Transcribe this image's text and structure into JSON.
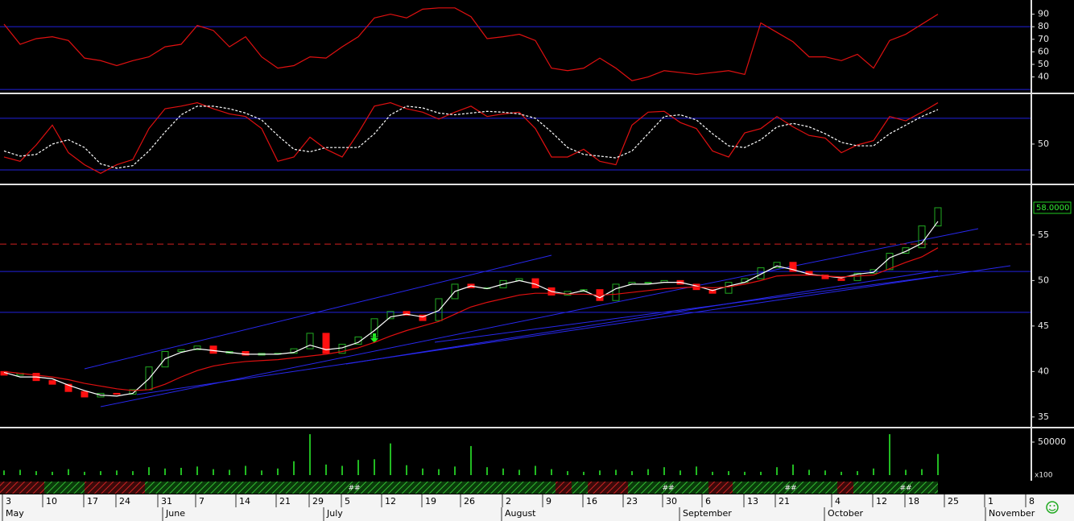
{
  "chart_data": [
    {
      "type": "line",
      "ylim": [
        28.8,
        100
      ],
      "yticks": [
        40,
        50,
        60,
        70,
        80,
        90
      ],
      "hlines": [
        {
          "value": 80,
          "color": "#2222dd"
        },
        {
          "value": 30,
          "color": "#2222dd"
        }
      ],
      "series": [
        {
          "color": "#e01010",
          "values": [
            82,
            66,
            70.5,
            72,
            69,
            55,
            53,
            49,
            53,
            56,
            64,
            66,
            81,
            77,
            64,
            72,
            56,
            47,
            49,
            56,
            55,
            64,
            72,
            87,
            90,
            87,
            94,
            95,
            95,
            88,
            70.5,
            72,
            74,
            69,
            47,
            45,
            47,
            55,
            47,
            37,
            40,
            45,
            43.5,
            42,
            43.5,
            45,
            42,
            83,
            75.5,
            68,
            56,
            56,
            53,
            58,
            47,
            69,
            74,
            82,
            90
          ]
        }
      ]
    },
    {
      "type": "line",
      "ylim": [
        6,
        106
      ],
      "yticks": [
        50
      ],
      "hlines": [
        {
          "value": 80,
          "color": "#2222dd"
        },
        {
          "value": 20,
          "color": "#2222dd"
        }
      ],
      "series": [
        {
          "color": "#e01010",
          "values": [
            35,
            30,
            49,
            72,
            40,
            26,
            16,
            26,
            32,
            68,
            91,
            94,
            98,
            91,
            85,
            82,
            68,
            30,
            35,
            58,
            44,
            35,
            63,
            94,
            98,
            91,
            87,
            79,
            87,
            94,
            82,
            85,
            87,
            68,
            35,
            35,
            44,
            30,
            26,
            72,
            87,
            88,
            75,
            68,
            42,
            35,
            63,
            68,
            82,
            70,
            60,
            57,
            40,
            49,
            54,
            82,
            77,
            87,
            98
          ]
        },
        {
          "color": "#ffffff",
          "line_style": "dashed",
          "values": [
            42,
            36,
            38,
            50,
            55,
            46,
            27,
            22,
            25,
            42,
            64,
            84,
            94,
            94,
            91,
            86,
            78,
            60,
            44,
            41,
            46,
            46,
            46,
            62,
            84,
            94,
            92,
            86,
            84,
            86,
            88,
            87,
            85,
            80,
            64,
            46,
            38,
            36,
            34,
            42,
            62,
            82,
            84,
            78,
            62,
            48,
            46,
            55,
            70,
            74,
            70,
            62,
            52,
            48,
            48,
            62,
            72,
            82,
            90
          ]
        }
      ]
    },
    {
      "type": "candlestick",
      "ylim": [
        34.1,
        60.3
      ],
      "yticks": [
        35,
        40,
        45,
        50,
        55
      ],
      "last_price": {
        "value": 58,
        "label": "58.0000"
      },
      "hlines": [
        {
          "value": 54,
          "color": "#d02020",
          "line_style": "dashed"
        },
        {
          "value": 51,
          "color": "#2222dd"
        },
        {
          "value": 46.5,
          "color": "#2222dd"
        }
      ],
      "open": [
        40.0,
        39.6,
        39.8,
        39.0,
        38.6,
        37.8,
        37.2,
        37.6,
        37.5,
        38.0,
        40.5,
        42.2,
        42.4,
        42.8,
        42.0,
        42.2,
        41.8,
        42.0,
        42.0,
        42.5,
        44.2,
        42.0,
        43.0,
        43.8,
        45.8,
        46.6,
        46.2,
        45.6,
        48.0,
        49.6,
        49.2,
        49.2,
        50.0,
        50.2,
        49.2,
        48.4,
        48.8,
        49.0,
        47.8,
        49.6,
        49.8,
        49.8,
        50.0,
        49.6,
        49.0,
        48.6,
        49.8,
        50.2,
        51.4,
        52.0,
        51.0,
        50.6,
        50.2,
        50.0,
        50.8,
        51.2,
        53.0,
        53.6,
        56.0
      ],
      "close": [
        39.6,
        39.8,
        39.0,
        38.6,
        37.8,
        37.2,
        37.6,
        37.5,
        38.0,
        40.5,
        42.2,
        42.4,
        42.8,
        42.0,
        42.2,
        41.8,
        42.0,
        42.0,
        42.5,
        44.2,
        42.0,
        43.0,
        43.8,
        45.8,
        46.6,
        46.2,
        45.6,
        48.0,
        49.6,
        49.2,
        49.2,
        50.0,
        50.2,
        49.2,
        48.4,
        48.8,
        49.0,
        47.8,
        49.6,
        49.8,
        49.8,
        50.0,
        49.6,
        49.0,
        48.6,
        49.8,
        50.2,
        51.4,
        52.0,
        51.0,
        50.6,
        50.2,
        50.0,
        50.8,
        51.2,
        53.0,
        53.6,
        56.0,
        58.0
      ],
      "up_color": "#22aa22",
      "down_color": "#ff1010",
      "series": [
        {
          "color": "#ffffff",
          "values": [
            39.9,
            39.4,
            39.4,
            39.2,
            38.5,
            37.9,
            37.4,
            37.3,
            37.6,
            39.2,
            41.4,
            42.1,
            42.5,
            42.3,
            42.1,
            41.9,
            41.9,
            41.9,
            42.1,
            42.9,
            42.4,
            42.6,
            43.2,
            44.5,
            46.0,
            46.3,
            46.0,
            46.7,
            48.8,
            49.4,
            49.1,
            49.6,
            50.0,
            49.6,
            48.8,
            48.5,
            48.9,
            48.1,
            49.1,
            49.6,
            49.6,
            49.8,
            49.8,
            49.4,
            48.9,
            49.4,
            49.8,
            50.7,
            51.6,
            51.2,
            50.7,
            50.5,
            50.3,
            50.7,
            50.9,
            52.5,
            53.2,
            54.1,
            56.5
          ]
        },
        {
          "color": "#e01010",
          "values": [
            40.0,
            39.8,
            39.6,
            39.4,
            39.1,
            38.7,
            38.4,
            38.1,
            37.9,
            38.0,
            38.6,
            39.4,
            40.1,
            40.6,
            40.9,
            41.1,
            41.2,
            41.3,
            41.5,
            41.7,
            41.9,
            42.2,
            42.6,
            43.2,
            43.9,
            44.5,
            45.0,
            45.5,
            46.3,
            47.1,
            47.6,
            48.0,
            48.4,
            48.6,
            48.6,
            48.5,
            48.5,
            48.4,
            48.5,
            48.7,
            48.9,
            49.1,
            49.2,
            49.3,
            49.2,
            49.3,
            49.6,
            50.0,
            50.5,
            50.6,
            50.6,
            50.5,
            50.4,
            50.5,
            50.6,
            51.3,
            52.0,
            52.6,
            53.6
          ]
        }
      ]
    },
    {
      "type": "bar",
      "ylim": [
        0,
        68300
      ],
      "yticks": [
        50000
      ],
      "unit_label": "x100",
      "color": "#22bb22",
      "values": [
        7000,
        8000,
        6000,
        5000,
        9000,
        5000,
        6000,
        7000,
        6000,
        12000,
        10000,
        11000,
        13000,
        9000,
        8000,
        14000,
        7000,
        10000,
        21000,
        62000,
        16000,
        14000,
        23000,
        24000,
        48000,
        15000,
        10000,
        9000,
        13000,
        44000,
        12000,
        10000,
        8000,
        14000,
        9000,
        6000,
        5000,
        7000,
        8000,
        6000,
        9000,
        12000,
        7000,
        13000,
        5000,
        6000,
        5000,
        5000,
        12000,
        16000,
        8000,
        7000,
        5000,
        6000,
        10000,
        62000,
        8000,
        9000,
        32000
      ]
    }
  ],
  "strip_labels": [
    "##",
    "##",
    "##",
    "##"
  ],
  "date_axis": {
    "days": [
      "3",
      "10",
      "17",
      "24",
      "31",
      "7",
      "14",
      "21",
      "29",
      "5",
      "12",
      "19",
      "26",
      "2",
      "9",
      "16",
      "23",
      "30",
      "6",
      "13",
      "21",
      "4",
      "12",
      "18",
      "25",
      "1",
      "8"
    ],
    "months": [
      "May",
      "June",
      "July",
      "August",
      "September",
      "October",
      "November"
    ]
  }
}
